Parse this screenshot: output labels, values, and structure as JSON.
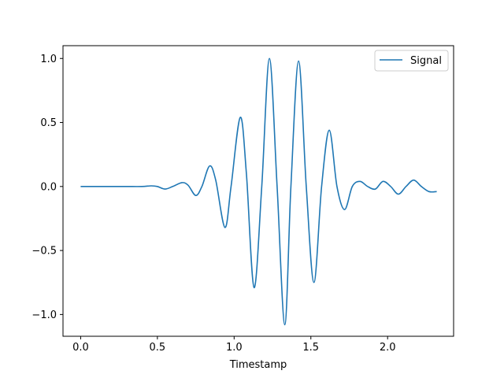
{
  "chart_data": {
    "type": "line",
    "title": "",
    "xlabel": "Timestamp",
    "ylabel": "",
    "xlim": [
      -0.115,
      2.43
    ],
    "ylim": [
      -1.17,
      1.1
    ],
    "x_ticks": [
      {
        "value": 0.0,
        "label": "0.0"
      },
      {
        "value": 0.5,
        "label": "0.5"
      },
      {
        "value": 1.0,
        "label": "1.0"
      },
      {
        "value": 1.5,
        "label": "1.5"
      },
      {
        "value": 2.0,
        "label": "2.0"
      }
    ],
    "y_ticks": [
      {
        "value": 1.0,
        "label": "1.0"
      },
      {
        "value": 0.5,
        "label": "0.5"
      },
      {
        "value": 0.0,
        "label": "0.0"
      },
      {
        "value": -0.5,
        "label": "−0.5"
      },
      {
        "value": -1.0,
        "label": "−1.0"
      }
    ],
    "grid": false,
    "legend_position": "top-right",
    "series": [
      {
        "name": "Signal",
        "color": "#1f77b4",
        "x": [
          0.0,
          0.1,
          0.2,
          0.3,
          0.4,
          0.46,
          0.5,
          0.55,
          0.6,
          0.66,
          0.7,
          0.75,
          0.79,
          0.84,
          0.88,
          0.94,
          0.98,
          1.04,
          1.08,
          1.13,
          1.18,
          1.23,
          1.28,
          1.33,
          1.37,
          1.42,
          1.47,
          1.52,
          1.57,
          1.62,
          1.67,
          1.72,
          1.77,
          1.82,
          1.87,
          1.92,
          1.97,
          2.02,
          2.07,
          2.12,
          2.17,
          2.22,
          2.27,
          2.32
        ],
        "y": [
          0.0,
          0.0,
          0.0,
          0.0,
          0.0,
          0.005,
          0.0,
          -0.02,
          0.0,
          0.03,
          0.01,
          -0.07,
          0.0,
          0.16,
          0.05,
          -0.32,
          0.0,
          0.54,
          0.1,
          -0.79,
          0.0,
          1.0,
          0.0,
          -1.08,
          0.0,
          0.98,
          0.0,
          -0.75,
          0.0,
          0.44,
          0.0,
          -0.18,
          0.0,
          0.04,
          0.0,
          -0.02,
          0.04,
          0.0,
          -0.06,
          0.0,
          0.05,
          0.0,
          -0.04,
          -0.04
        ]
      }
    ]
  }
}
